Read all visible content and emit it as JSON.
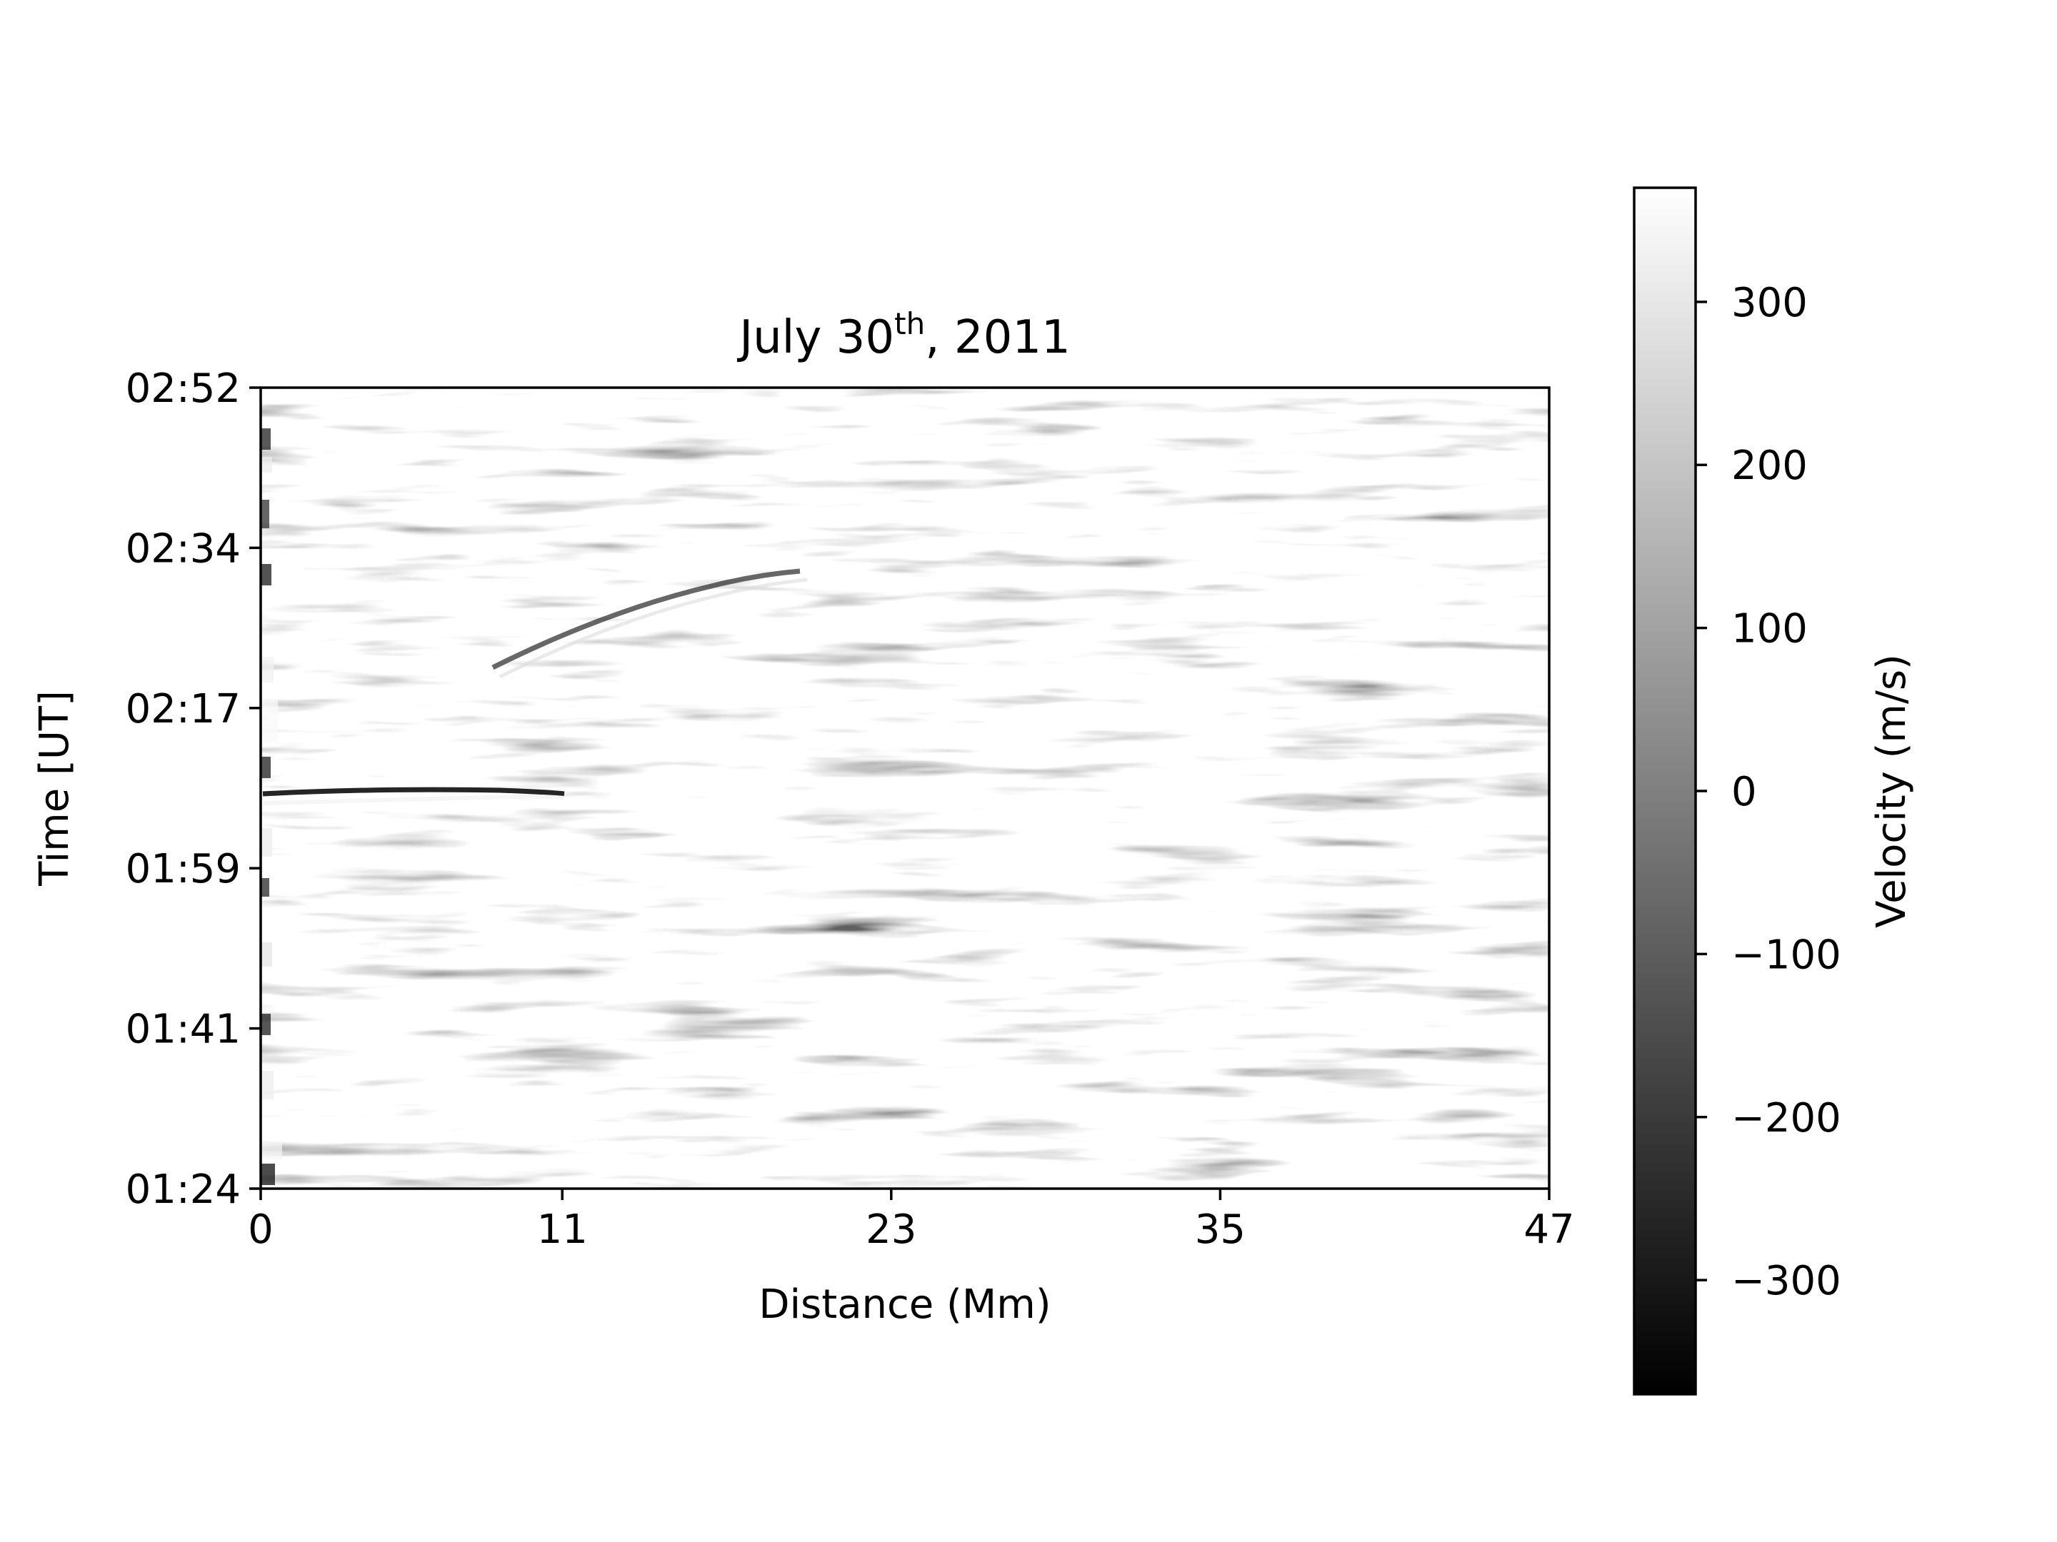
{
  "chart_data": {
    "type": "heatmap",
    "title_main": "July 30",
    "title_sup": "th",
    "title_rest": ", 2011",
    "xlabel": "Distance (Mm)",
    "ylabel": "Time [UT]",
    "xlim": [
      0,
      47
    ],
    "x_ticks": [
      0,
      11,
      23,
      35,
      47
    ],
    "y_ticks": [
      "01:24",
      "01:41",
      "01:59",
      "02:17",
      "02:34",
      "02:52"
    ],
    "colormap": "gray",
    "colorbar": {
      "label": "Velocity (m/s)",
      "range": [
        -370,
        370
      ],
      "ticks": [
        300,
        200,
        100,
        0,
        -100,
        -200,
        -300
      ],
      "tick_labels": [
        "300",
        "200",
        "100",
        "0",
        "−100",
        "−200",
        "−300"
      ]
    },
    "features": [
      {
        "kind": "dark-bright streak",
        "x_range": [
          0,
          10
        ],
        "time": "02:08"
      },
      {
        "kind": "diagonal ridge",
        "x_range": [
          8,
          20
        ],
        "time_range": [
          "02:22",
          "02:29"
        ]
      }
    ],
    "grid": false
  }
}
